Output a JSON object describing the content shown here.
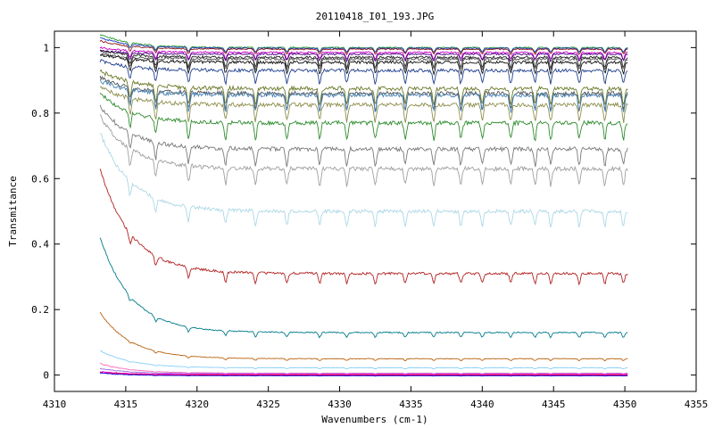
{
  "chart_data": {
    "type": "line",
    "title": "20110418_I01_193.JPG",
    "xlabel": "Wavenumbers (cm-1)",
    "ylabel": "Transmitance",
    "xlim": [
      4310,
      4355
    ],
    "ylim": [
      -0.05,
      1.05
    ],
    "x_ticks": [
      4310,
      4315,
      4320,
      4325,
      4330,
      4335,
      4340,
      4345,
      4350,
      4355
    ],
    "y_ticks": [
      0,
      0.2,
      0.4,
      0.6,
      0.8,
      1
    ],
    "x_tick_labels": [
      "4310",
      "4315",
      "4320",
      "4325",
      "4330",
      "4335",
      "4340",
      "4345",
      "4350",
      "4355"
    ],
    "y_tick_labels": [
      "0",
      "0.2",
      "0.4",
      "0.6",
      "0.8",
      "1"
    ],
    "grid": false,
    "legend": "none",
    "x_range_data": [
      4313.2,
      4350.2
    ],
    "absorption_lines": [
      4315.3,
      4317.1,
      4319.4,
      4322.0,
      4324.1,
      4326.3,
      4328.6,
      4330.5,
      4332.5,
      4334.6,
      4336.6,
      4338.5,
      4340.0,
      4342.0,
      4343.7,
      4344.8,
      4346.8,
      4348.6,
      4349.9
    ],
    "series": [
      {
        "color": "#2ca02c",
        "start": 1.04,
        "baseline": 1.0,
        "depth": 0.015
      },
      {
        "color": "#1f3fbf",
        "start": 1.03,
        "baseline": 0.998,
        "depth": 0.012
      },
      {
        "color": "#8b1a1a",
        "start": 1.02,
        "baseline": 0.995,
        "depth": 0.015
      },
      {
        "color": "#c800c8",
        "start": 1.0,
        "baseline": 0.985,
        "depth": 0.02
      },
      {
        "color": "#4b0082",
        "start": 0.99,
        "baseline": 0.98,
        "depth": 0.02
      },
      {
        "color": "#222222",
        "start": 0.99,
        "baseline": 0.97,
        "depth": 0.03
      },
      {
        "color": "#555555",
        "start": 0.98,
        "baseline": 0.965,
        "depth": 0.03
      },
      {
        "color": "#111111",
        "start": 0.98,
        "baseline": 0.955,
        "depth": 0.035
      },
      {
        "color": "#1f3f8f",
        "start": 0.96,
        "baseline": 0.93,
        "depth": 0.04
      },
      {
        "color": "#6b7a2a",
        "start": 0.93,
        "baseline": 0.875,
        "depth": 0.05
      },
      {
        "color": "#555555",
        "start": 0.91,
        "baseline": 0.86,
        "depth": 0.05
      },
      {
        "color": "#4682b4",
        "start": 0.9,
        "baseline": 0.855,
        "depth": 0.05
      },
      {
        "color": "#8f8f4f",
        "start": 0.88,
        "baseline": 0.825,
        "depth": 0.05
      },
      {
        "color": "#2e8b2e",
        "start": 0.86,
        "baseline": 0.77,
        "depth": 0.05
      },
      {
        "color": "#7a7a7a",
        "start": 0.82,
        "baseline": 0.69,
        "depth": 0.05
      },
      {
        "color": "#a0a0a0",
        "start": 0.79,
        "baseline": 0.63,
        "depth": 0.05
      },
      {
        "color": "#add8e6",
        "start": 0.74,
        "baseline": 0.5,
        "depth": 0.045
      },
      {
        "color": "#b22222",
        "start": 0.63,
        "baseline": 0.31,
        "depth": 0.03
      },
      {
        "color": "#007b8a",
        "start": 0.42,
        "baseline": 0.13,
        "depth": 0.015
      },
      {
        "color": "#b8600b",
        "start": 0.19,
        "baseline": 0.05,
        "depth": 0.006
      },
      {
        "color": "#87cefa",
        "start": 0.075,
        "baseline": 0.022,
        "depth": 0.003
      },
      {
        "color": "#ff69b4",
        "start": 0.035,
        "baseline": 0.006,
        "depth": 0.002
      },
      {
        "color": "#9370db",
        "start": 0.02,
        "baseline": 0.004,
        "depth": 0.001
      },
      {
        "color": "#ff00ff",
        "start": 0.01,
        "baseline": 0.002,
        "depth": 0.001
      },
      {
        "color": "#ff0000",
        "start": 0.008,
        "baseline": 0.0,
        "depth": 0.001
      },
      {
        "color": "#0000ff",
        "start": 0.006,
        "baseline": -0.002,
        "depth": 0.001
      }
    ]
  }
}
